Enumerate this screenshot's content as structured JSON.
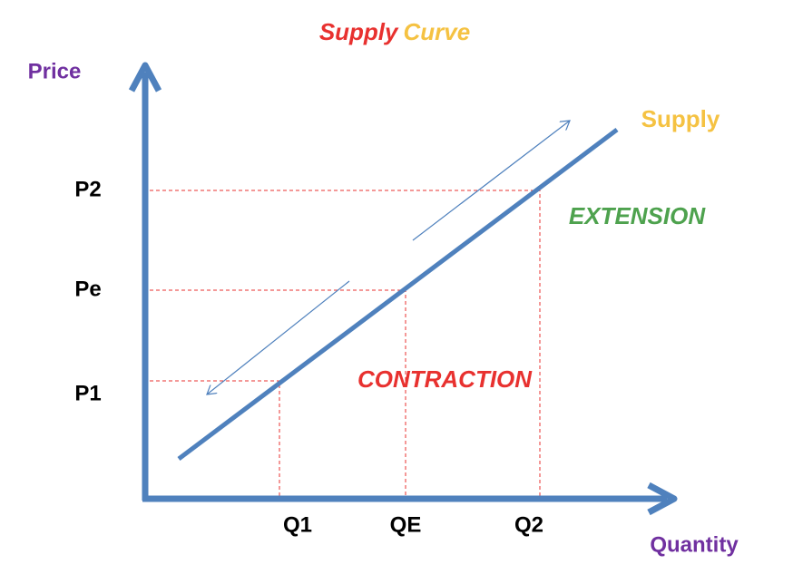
{
  "title": {
    "first": "Supply",
    "second": "Curve"
  },
  "axes": {
    "y_label": "Price",
    "x_label": "Quantity"
  },
  "price_levels": [
    "P2",
    "Pe",
    "P1"
  ],
  "quantity_levels": [
    "Q1",
    "QE",
    "Q2"
  ],
  "curve_label": "Supply",
  "annotations": {
    "extension": "EXTENSION",
    "contraction": "CONTRACTION"
  }
}
